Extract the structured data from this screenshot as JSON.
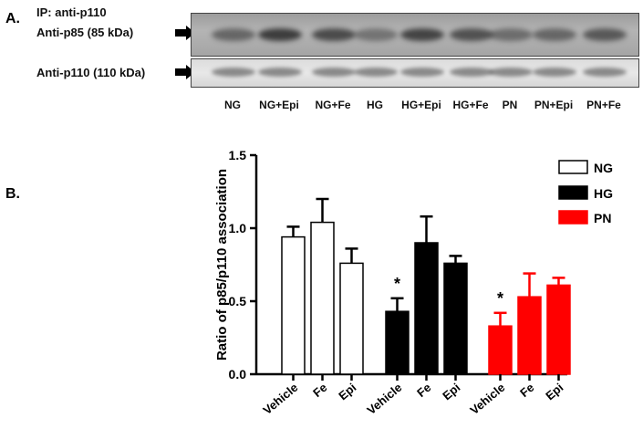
{
  "panel_a": {
    "label": "A.",
    "ip_label": "IP: anti-p110",
    "row1_label": "Anti-p85 (85 kDa)",
    "row2_label": "Anti-p110 (110 kDa)",
    "lanes": [
      "NG",
      "NG+Epi",
      "NG+Fe",
      "HG",
      "HG+Epi",
      "HG+Fe",
      "PN",
      "PN+Epi",
      "PN+Fe"
    ]
  },
  "panel_b": {
    "label": "B."
  },
  "chart_data": {
    "type": "bar",
    "ylabel": "Ratio of p85/p110 association",
    "xlabel": "",
    "ylim": [
      0,
      1.5
    ],
    "yticks": [
      "0.0",
      "0.5",
      "1.0",
      "1.5"
    ],
    "categories": [
      "Vehicle",
      "Fe",
      "Epi",
      "Vehicle",
      "Fe",
      "Epi",
      "Vehicle",
      "Fe",
      "Epi"
    ],
    "groups": [
      {
        "name": "NG",
        "color": "#ffffff",
        "values": [
          0.94,
          1.04,
          0.76
        ],
        "errors": [
          0.07,
          0.16,
          0.1
        ],
        "significant": [
          false,
          false,
          false
        ]
      },
      {
        "name": "HG",
        "color": "#000000",
        "values": [
          0.43,
          0.9,
          0.76
        ],
        "errors": [
          0.09,
          0.18,
          0.05
        ],
        "significant": [
          true,
          false,
          false
        ]
      },
      {
        "name": "PN",
        "color": "#ff0000",
        "values": [
          0.33,
          0.53,
          0.61
        ],
        "errors": [
          0.09,
          0.16,
          0.05
        ],
        "significant": [
          true,
          false,
          false
        ]
      }
    ],
    "significance_marker": "*",
    "legend": {
      "placement": "top-right",
      "entries": [
        "NG",
        "HG",
        "PN"
      ]
    }
  }
}
